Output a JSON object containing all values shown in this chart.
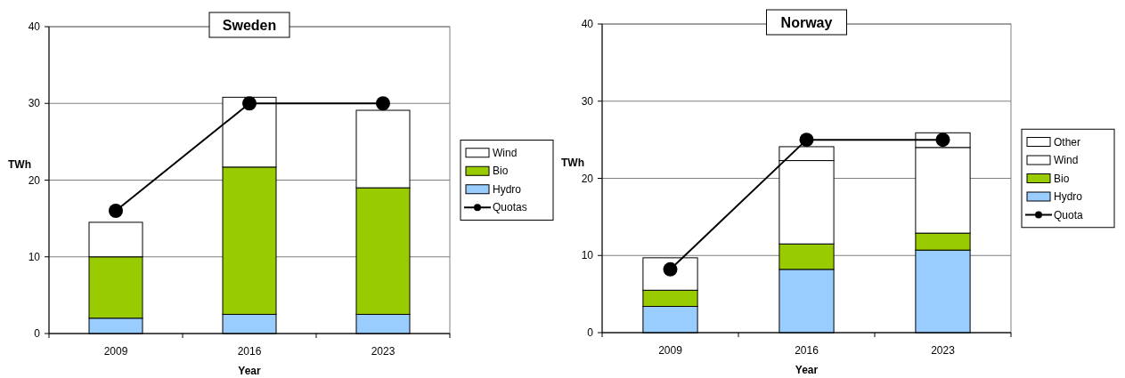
{
  "chart_data": [
    {
      "type": "bar",
      "title": "Sweden",
      "xlabel": "Year",
      "ylabel": "TWh",
      "categories": [
        "2009",
        "2016",
        "2023"
      ],
      "stacked": true,
      "ylim": [
        0,
        40
      ],
      "yticks": [
        0,
        10,
        20,
        30,
        40
      ],
      "grid": "y",
      "legend": "right",
      "marker": "circle",
      "line_style": "solid",
      "series": [
        {
          "name": "Hydro",
          "color": "#99ccff",
          "values": [
            2,
            2.5,
            2.5
          ]
        },
        {
          "name": "Bio",
          "color": "#99cc00",
          "values": [
            8,
            19.2,
            16.5
          ]
        },
        {
          "name": "Wind",
          "color": "#ffffff",
          "values": [
            4.5,
            9.1,
            10.1
          ]
        },
        {
          "name": "Quotas",
          "type": "line",
          "color": "#000000",
          "values": [
            16,
            30,
            30
          ]
        }
      ]
    },
    {
      "type": "bar",
      "title": "Norway",
      "xlabel": "Year",
      "ylabel": "TWh",
      "categories": [
        "2009",
        "2016",
        "2023"
      ],
      "stacked": true,
      "ylim": [
        0,
        40
      ],
      "yticks": [
        0,
        10,
        20,
        30,
        40
      ],
      "grid": "y",
      "legend": "right",
      "marker": "circle",
      "line_style": "solid",
      "series": [
        {
          "name": "Hydro",
          "color": "#99ccff",
          "values": [
            3.4,
            8.2,
            10.7
          ]
        },
        {
          "name": "Bio",
          "color": "#99cc00",
          "values": [
            2.1,
            3.3,
            2.2
          ]
        },
        {
          "name": "Wind",
          "color": "#ffffff",
          "values": [
            4.2,
            10.8,
            11.1
          ]
        },
        {
          "name": "Other",
          "color": "#ffffff",
          "values": [
            0,
            1.8,
            1.9
          ]
        },
        {
          "name": "Quota",
          "type": "line",
          "color": "#000000",
          "values": [
            8.2,
            25,
            25
          ]
        }
      ]
    }
  ]
}
